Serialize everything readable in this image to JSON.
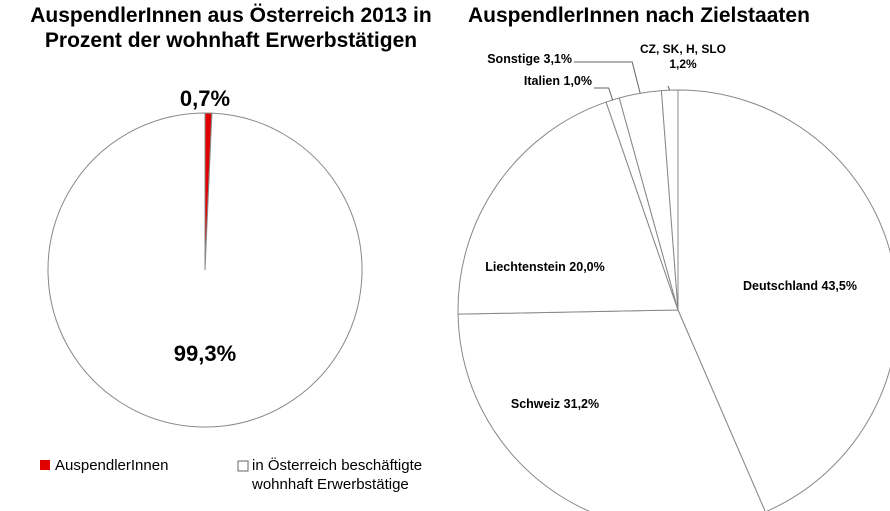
{
  "chart_data": [
    {
      "type": "pie",
      "title": "AuspendlerInnen aus Österreich 2013 in Prozent der wohnhaft Erwerbstätigen",
      "categories": [
        "AuspendlerInnen",
        "in Österreich beschäftigte wohnhaft Erwerbstätige"
      ],
      "values": [
        0.7,
        99.3
      ],
      "value_labels": [
        "0,7%",
        "99,3%"
      ],
      "colors": [
        "#e00000",
        "#ffffff"
      ],
      "legend": "bottom"
    },
    {
      "type": "pie",
      "title": "AuspendlerInnen nach Zielstaaten",
      "categories": [
        "Deutschland",
        "Schweiz",
        "Liechtenstein",
        "Italien",
        "Sonstige",
        "CZ, SK, H, SLO"
      ],
      "values": [
        43.5,
        31.2,
        20.0,
        1.0,
        3.1,
        1.2
      ],
      "value_labels": [
        "43,5%",
        "31,2%",
        "20,0%",
        "1,0%",
        "3,1%",
        "1,2%"
      ],
      "colors": [
        "#ffffff",
        "#ffffff",
        "#ffffff",
        "#ffffff",
        "#ffffff",
        "#ffffff"
      ]
    }
  ]
}
